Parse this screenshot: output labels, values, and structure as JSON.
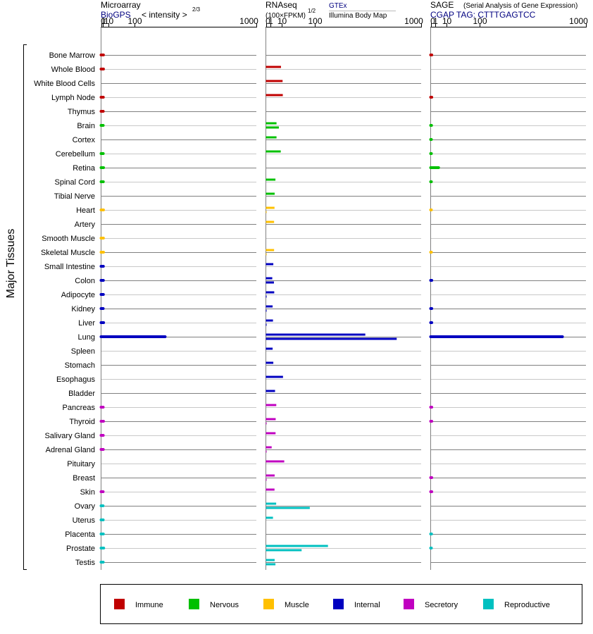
{
  "chart_data": {
    "type": "bar",
    "y_axis_label": "Major Tissues",
    "tissues": [
      "Bone Marrow",
      "Whole Blood",
      "White Blood Cells",
      "Lymph Node",
      "Thymus",
      "Brain",
      "Cortex",
      "Cerebellum",
      "Retina",
      "Spinal Cord",
      "Tibial Nerve",
      "Heart",
      "Artery",
      "Smooth Muscle",
      "Skeletal Muscle",
      "Small Intestine",
      "Colon",
      "Adipocyte",
      "Kidney",
      "Liver",
      "Lung",
      "Spleen",
      "Stomach",
      "Esophagus",
      "Bladder",
      "Pancreas",
      "Thyroid",
      "Salivary Gland",
      "Adrenal Gland",
      "Pituitary",
      "Breast",
      "Skin",
      "Ovary",
      "Uterus",
      "Placenta",
      "Prostate",
      "Testis"
    ],
    "categories": [
      "immune",
      "immune",
      "immune",
      "immune",
      "immune",
      "nervous",
      "nervous",
      "nervous",
      "nervous",
      "nervous",
      "nervous",
      "muscle",
      "muscle",
      "muscle",
      "muscle",
      "internal",
      "internal",
      "internal",
      "internal",
      "internal",
      "internal",
      "internal",
      "internal",
      "internal",
      "internal",
      "secretory",
      "secretory",
      "secretory",
      "secretory",
      "secretory",
      "secretory",
      "secretory",
      "reproductive",
      "reproductive",
      "reproductive",
      "reproductive",
      "reproductive"
    ],
    "colors": {
      "immune": "#c00000",
      "nervous": "#00c000",
      "muscle": "#ffc000",
      "internal": "#0000c0",
      "secretory": "#c000c0",
      "reproductive": "#00c0c0"
    },
    "panels": [
      {
        "id": "microarray",
        "title": "Microarray",
        "source": "BioGPS",
        "scale_note": "< intensity >",
        "scale_exponent": "2/3",
        "scale": "power 2/3",
        "tick_labels": [
          "0",
          "1",
          "10",
          "100",
          "1000"
        ],
        "tick_values": [
          0,
          1,
          10,
          100,
          1000
        ],
        "xlim": [
          0,
          1000
        ],
        "series": [
          {
            "name": "BioGPS",
            "values": [
              1.9,
              1.95,
              null,
              1.75,
              1.65,
              1.6,
              null,
              1.65,
              2.0,
              1.75,
              null,
              1.95,
              null,
              1.85,
              1.95,
              1.8,
              1.8,
              1.8,
              1.6,
              2.1,
              265,
              null,
              null,
              null,
              null,
              1.6,
              1.95,
              1.65,
              1.7,
              null,
              null,
              1.55,
              1.45,
              1.6,
              1.75,
              2.2,
              1.6
            ]
          }
        ]
      },
      {
        "id": "rnaseq",
        "title": "RNAseq",
        "unit": "(100×FPKM)",
        "scale_exponent": "1/2",
        "sources": [
          "GTEx",
          "Illumina Body Map"
        ],
        "scale": "power 1/2",
        "tick_labels": [
          "0",
          "1",
          "10",
          "100",
          "1000"
        ],
        "tick_values": [
          0,
          1,
          10,
          100,
          1000
        ],
        "xlim": [
          0,
          1000
        ],
        "series": [
          {
            "name": "GTEx",
            "values": [
              null,
              9.5,
              11.6,
              11.9,
              null,
              4.7,
              4.7,
              9.2,
              null,
              3.8,
              3.2,
              3.1,
              2.8,
              null,
              2.8,
              2.3,
              1.7,
              2.9,
              1.9,
              2.1,
              410,
              1.9,
              2.3,
              12.2,
              3.5,
              4.5,
              4.0,
              3.9,
              1.4,
              14.0,
              3.2,
              3.1,
              4.4,
              2.1,
              null,
              160,
              3.2
            ]
          },
          {
            "name": "Illumina Body Map",
            "values": [
              null,
              null,
              null,
              null,
              null,
              7.0,
              null,
              null,
              null,
              null,
              null,
              0.003,
              null,
              null,
              0.005,
              null,
              2.7,
              0.01,
              0.01,
              0.01,
              710,
              null,
              null,
              null,
              null,
              null,
              0.01,
              null,
              0.005,
              null,
              0.005,
              null,
              80,
              null,
              null,
              53,
              3.8
            ]
          }
        ]
      },
      {
        "id": "sage",
        "title": "SAGE",
        "subtitle": "(Serial Analysis of Gene Expression)",
        "tag": "CGAP TAG: CTTTGAGTCC",
        "scale": "power 1/2",
        "tick_labels": [
          "0",
          "1",
          "10",
          "100",
          "1000"
        ],
        "tick_values": [
          0,
          1,
          10,
          100,
          1000
        ],
        "xlim": [
          0,
          1000
        ],
        "series": [
          {
            "name": "SAGE",
            "values": [
              0.05,
              null,
              null,
              0.05,
              null,
              0.03,
              0.02,
              0.02,
              2.6,
              0.02,
              null,
              0.01,
              null,
              null,
              0.01,
              null,
              0.05,
              null,
              0.05,
              0.05,
              720,
              null,
              null,
              null,
              null,
              0.05,
              0.05,
              null,
              null,
              null,
              0.05,
              0.05,
              null,
              null,
              0.03,
              0.02,
              null
            ]
          }
        ]
      }
    ],
    "legend": [
      {
        "key": "immune",
        "label": "Immune"
      },
      {
        "key": "nervous",
        "label": "Nervous"
      },
      {
        "key": "muscle",
        "label": "Muscle"
      },
      {
        "key": "internal",
        "label": "Internal"
      },
      {
        "key": "secretory",
        "label": "Secretory"
      },
      {
        "key": "reproductive",
        "label": "Reproductive"
      }
    ]
  }
}
